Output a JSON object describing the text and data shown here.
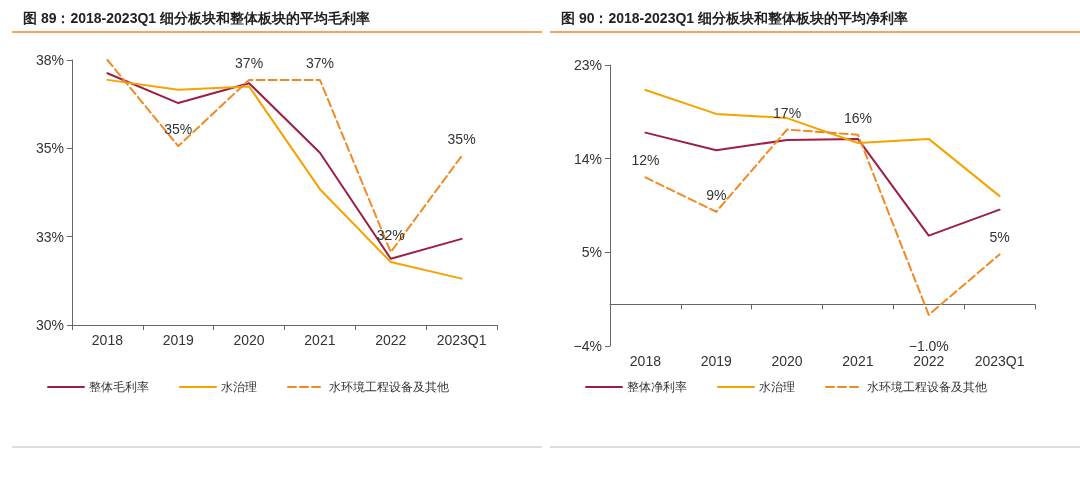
{
  "chart_data": [
    {
      "type": "line",
      "title": "图 89：2018-2023Q1 细分板块和整体板块的平均毛利率",
      "categories": [
        "2018",
        "2019",
        "2020",
        "2021",
        "2022",
        "2023Q1"
      ],
      "series": [
        {
          "name": "整体毛利率",
          "color": "#9e1f45",
          "values": [
            37.6,
            36.7,
            37.3,
            35.2,
            32.0,
            32.6
          ]
        },
        {
          "name": "水治理",
          "color": "#f5a300",
          "values": [
            37.4,
            37.1,
            37.2,
            34.1,
            31.9,
            31.4
          ]
        },
        {
          "name": "水环境工程设备及其他",
          "color": "#f08a24",
          "line_style": "dashed",
          "values": [
            38.0,
            35.4,
            37.4,
            37.4,
            32.2,
            35.1
          ],
          "value_labels": [
            null,
            "35%",
            "37%",
            "37%",
            "32%",
            "35%"
          ]
        }
      ],
      "ylim": [
        30,
        38
      ],
      "yticks": [
        {
          "value": 30,
          "label": "30%"
        },
        {
          "value": 32.667,
          "label": "33%"
        },
        {
          "value": 35.333,
          "label": "35%"
        },
        {
          "value": 38,
          "label": "38%"
        }
      ],
      "grid": false,
      "legend": "bottom",
      "marker": "none",
      "line_style": "solid"
    },
    {
      "type": "line",
      "title": "图 90：2018-2023Q1 细分板块和整体板块的平均净利率",
      "categories": [
        "2018",
        "2019",
        "2020",
        "2021",
        "2022",
        "2023Q1"
      ],
      "series": [
        {
          "name": "整体净利率",
          "color": "#9e1f45",
          "values": [
            16.5,
            14.8,
            15.8,
            15.9,
            6.6,
            9.1
          ]
        },
        {
          "name": "水治理",
          "color": "#f5a300",
          "values": [
            20.6,
            18.3,
            17.9,
            15.5,
            15.9,
            10.4
          ]
        },
        {
          "name": "水环境工程设备及其他",
          "color": "#f08a24",
          "line_style": "dashed",
          "values": [
            12.2,
            8.9,
            16.8,
            16.3,
            -1.0,
            4.8
          ],
          "value_labels": [
            "12%",
            "9%",
            "17%",
            "16%",
            "−1.0%",
            "5%"
          ]
        }
      ],
      "ylim": [
        -4,
        23
      ],
      "yticks": [
        {
          "value": -4,
          "label": "−4%"
        },
        {
          "value": 5,
          "label": "5%"
        },
        {
          "value": 14,
          "label": "14%"
        },
        {
          "value": 23,
          "label": "23%"
        }
      ],
      "grid": false,
      "legend": "bottom",
      "marker": "none",
      "line_style": "solid"
    }
  ]
}
